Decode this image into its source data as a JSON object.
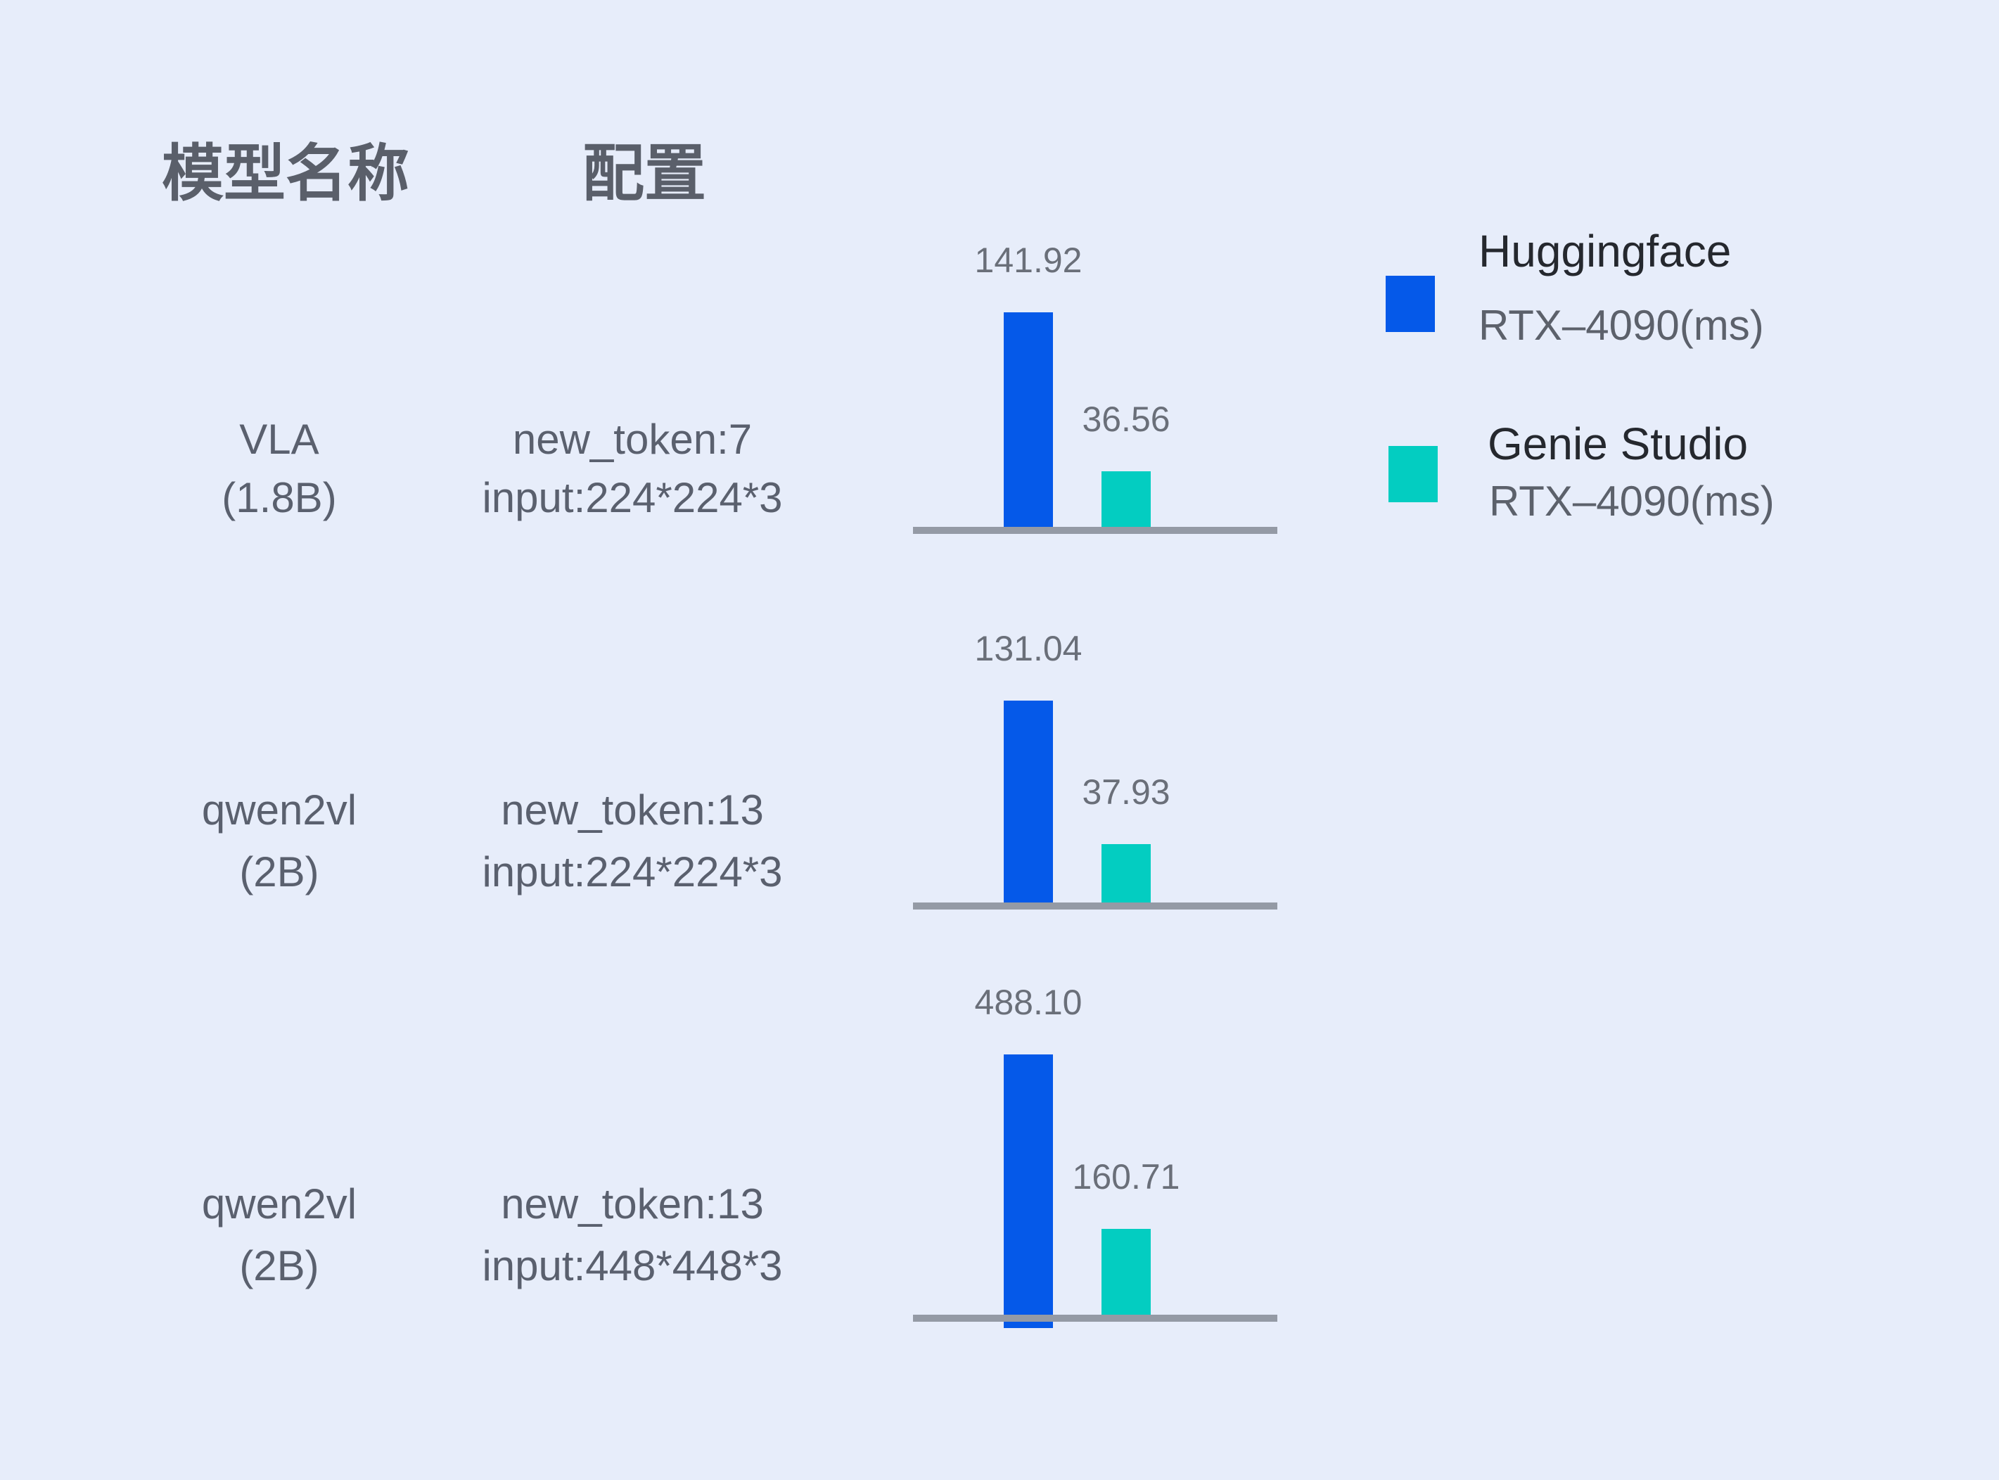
{
  "page": {
    "background": "#e7edfa",
    "description": "Latency comparison table: Huggingface vs Genie Studio on RTX-4090"
  },
  "table_headers": {
    "model_name": "模型名称",
    "config": "配置"
  },
  "legend": [
    {
      "id": "huggingface",
      "label": "Huggingface",
      "sublabel": "RTX–4090(ms)",
      "color": "#0559e9"
    },
    {
      "id": "genie-studio",
      "label": "Genie Studio",
      "sublabel": "RTX–4090(ms)",
      "color": "#03cdc1"
    }
  ],
  "chart_data": {
    "type": "bar",
    "unit": "ms",
    "series": [
      {
        "name": "Huggingface RTX–4090(ms)",
        "color": "#0559e9",
        "values": [
          141.92,
          131.04,
          488.1
        ]
      },
      {
        "name": "Genie Studio RTX–4090(ms)",
        "color": "#03cdc1",
        "values": [
          36.56,
          37.93,
          160.71
        ]
      }
    ],
    "groups": [
      {
        "model": "VLA",
        "variant": "(1.8B)",
        "config_lines": [
          "new_token:7",
          "input:224*224*3"
        ],
        "values": [
          141.92,
          36.56
        ],
        "labels": [
          "141.92",
          "36.56"
        ]
      },
      {
        "model": "qwen2vl",
        "variant": "(2B)",
        "config_lines": [
          "new_token:13",
          "input:224*224*3"
        ],
        "values": [
          131.04,
          37.93
        ],
        "labels": [
          "131.04",
          "37.93"
        ]
      },
      {
        "model": "qwen2vl",
        "variant": "(2B)",
        "config_lines": [
          "new_token:13",
          "input:448*448*3"
        ],
        "values": [
          488.1,
          160.71
        ],
        "labels": [
          "488.10",
          "160.71"
        ]
      }
    ],
    "layout_hints": {
      "legend_position": "top-right",
      "axis": "baseline-only, gray, no ticks, no gridlines",
      "value_labels": "above each bar",
      "independent_group_scales": true,
      "ylim_per_group": [
        [
          0,
          141.92
        ],
        [
          0,
          131.04
        ],
        [
          0,
          488.1
        ]
      ]
    }
  }
}
